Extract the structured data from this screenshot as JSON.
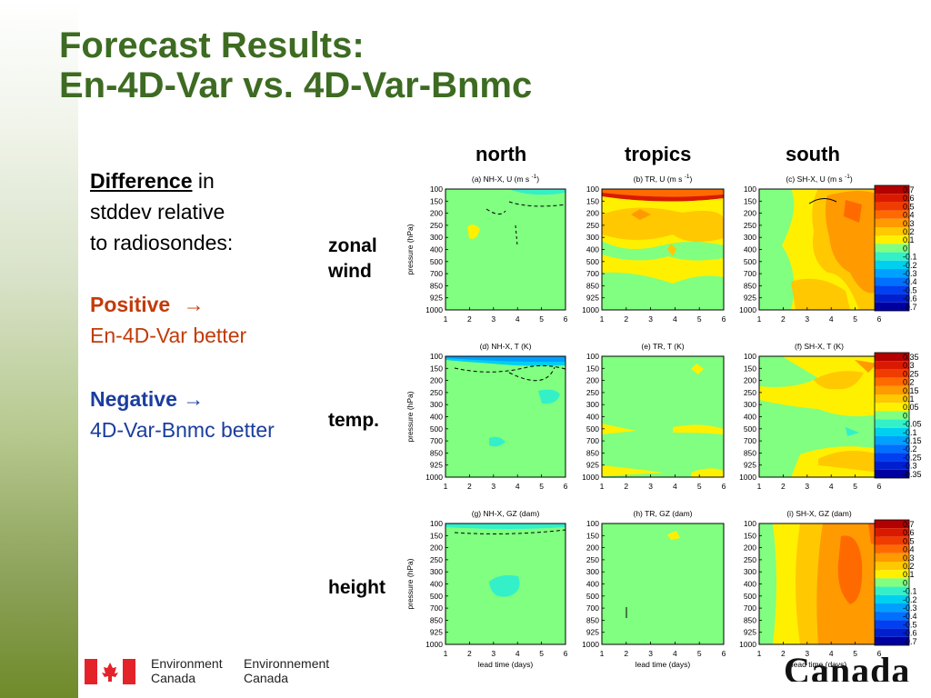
{
  "slide": {
    "title_line1": "Forecast Results:",
    "title_line2": "En-4D-Var vs. 4D-Var-Bnmc",
    "difference_label": "Difference",
    "difference_rest": " in",
    "line2": "stddev relative",
    "line3": "to radiosondes:",
    "positive_label": "Positive",
    "positive_arrow": "→",
    "positive_text": "En-4D-Var better",
    "negative_label": "Negative",
    "negative_arrow": "→",
    "negative_text": "4D-Var-Bnmc better",
    "row_labels": {
      "zonal_1": "zonal",
      "zonal_2": "wind",
      "temp": "temp.",
      "height": "height"
    },
    "col_labels": {
      "north": "north",
      "tropics": "tropics",
      "south": "south"
    },
    "footer": {
      "en1": "Environment",
      "en2": "Canada",
      "fr1": "Environnement",
      "fr2": "Canada",
      "wordmark": "Canada"
    }
  },
  "colors": {
    "title": "#3d6b22",
    "positive": "#c23b0a",
    "negative": "#1a3d9e",
    "neutral_fill": "#80ff80",
    "flag_red": "#e4222a"
  },
  "chart_data": {
    "type": "heatmap",
    "x_label": "lead time (days)",
    "x_ticks": [
      "1",
      "2",
      "3",
      "4",
      "5",
      "6"
    ],
    "y_label": "pressure (hPa)",
    "y_ticks": [
      "100",
      "150",
      "200",
      "250",
      "300",
      "400",
      "500",
      "700",
      "850",
      "925",
      "1000"
    ],
    "panels": [
      {
        "title": "(a) NH-X, U (m s ",
        "title_sup": "-1",
        "title_end": ")"
      },
      {
        "title": "(b) TR, U (m s ",
        "title_sup": "-1",
        "title_end": ")"
      },
      {
        "title": "(c) SH-X, U (m s ",
        "title_sup": "-1",
        "title_end": ")"
      },
      {
        "title": "(d) NH-X, T (K)"
      },
      {
        "title": "(e) TR, T (K)"
      },
      {
        "title": "(f) SH-X, T (K)"
      },
      {
        "title": "(g) NH-X, GZ (dam)"
      },
      {
        "title": "(h) TR, GZ (dam)"
      },
      {
        "title": "(i) SH-X, GZ (dam)"
      }
    ],
    "colorbars": [
      {
        "labels": [
          "0.7",
          "0.6",
          "0.5",
          "0.4",
          "0.3",
          "0.2",
          "0.1",
          "0",
          "-0.1",
          "-0.2",
          "-0.3",
          "-0.4",
          "-0.5",
          "-0.6",
          "-0.7"
        ]
      },
      {
        "labels": [
          "0.35",
          "0.3",
          "0.25",
          "0.2",
          "0.15",
          "0.1",
          "0.05",
          "0",
          "-0.05",
          "-0.1",
          "-0.15",
          "-0.2",
          "-0.25",
          "-0.3",
          "-0.35"
        ]
      },
      {
        "labels": [
          "0.7",
          "0.6",
          "0.5",
          "0.4",
          "0.3",
          "0.2",
          "0.1",
          "0",
          "-0.1",
          "-0.2",
          "-0.3",
          "-0.4",
          "-0.5",
          "-0.6",
          "-0.7"
        ]
      }
    ],
    "colorbar_colors": [
      "#b30000",
      "#d91a00",
      "#f03c00",
      "#ff6a00",
      "#ff9a00",
      "#ffc800",
      "#fff000",
      "#80ff80",
      "#33f0c8",
      "#00d0f0",
      "#00a0ff",
      "#0070ff",
      "#0040f0",
      "#0020d0",
      "#0000a0"
    ]
  }
}
